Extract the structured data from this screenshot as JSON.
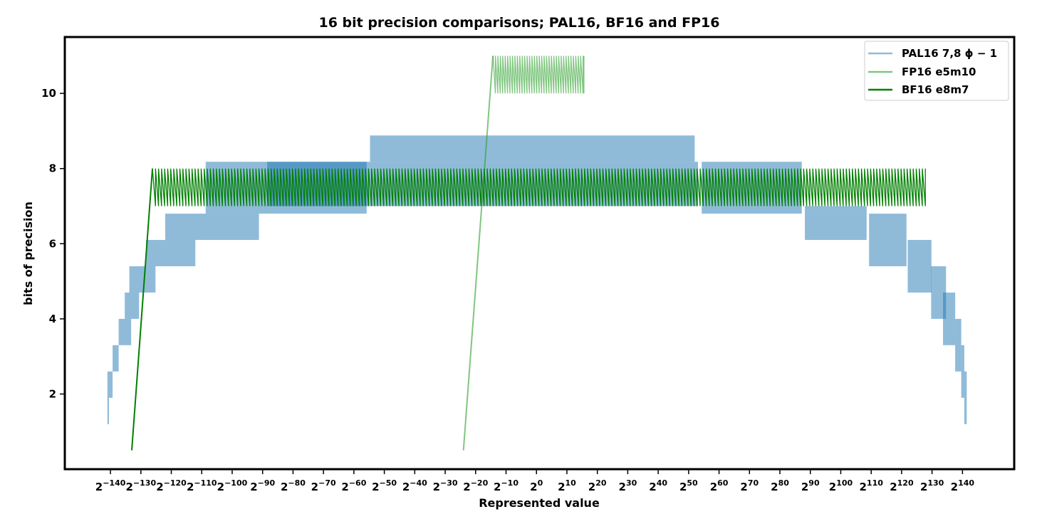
{
  "chart_data": {
    "type": "line",
    "title": "16 bit precision comparisons; PAL16, BF16 and FP16",
    "xlabel": "Represented value",
    "ylabel": "bits of precision",
    "x_scale": "log2",
    "x_tick_base": "2",
    "x_tick_exponents": [
      "−140",
      "−130",
      "−120",
      "−110",
      "−100",
      "−90",
      "−80",
      "−70",
      "−60",
      "−50",
      "−40",
      "−30",
      "−20",
      "−10",
      "0",
      "10",
      "20",
      "30",
      "40",
      "50",
      "60",
      "70",
      "80",
      "90",
      "100",
      "110",
      "120",
      "130",
      "140"
    ],
    "y_ticks": [
      "2",
      "4",
      "6",
      "8",
      "10"
    ],
    "y_tick_values": [
      2,
      4,
      6,
      8,
      10
    ],
    "xlim": [
      -155,
      157
    ],
    "ylim": [
      0,
      11.5
    ],
    "grid": false,
    "legend_position": "top-right",
    "series": [
      {
        "name": "PAL16 7,8 ϕ − 1",
        "style": "band",
        "color": "#1f77b4",
        "alpha": 0.5,
        "bands": [
          {
            "x": [
              -141,
              -140.5
            ],
            "low": 1.2,
            "high": 2.6
          },
          {
            "x": [
              -140.5,
              -139.3
            ],
            "low": 1.9,
            "high": 2.6
          },
          {
            "x": [
              -139.3,
              -137.3
            ],
            "low": 2.6,
            "high": 3.3
          },
          {
            "x": [
              -137.3,
              -133.2
            ],
            "low": 3.3,
            "high": 4.0
          },
          {
            "x": [
              -135.3,
              -130.6
            ],
            "low": 4.0,
            "high": 4.7
          },
          {
            "x": [
              -133.8,
              -125.2
            ],
            "low": 4.7,
            "high": 5.4
          },
          {
            "x": [
              -128.3,
              -112.1
            ],
            "low": 5.4,
            "high": 6.1
          },
          {
            "x": [
              -122.0,
              -91.2
            ],
            "low": 6.1,
            "high": 6.8
          },
          {
            "x": [
              -108.7,
              -55.8
            ],
            "low": 6.8,
            "high": 8.18
          },
          {
            "x": [
              -88.5,
              53.1
            ],
            "low": 7.0,
            "high": 8.18
          },
          {
            "x": [
              -54.7,
              52.0
            ],
            "low": 8.18,
            "high": 8.88
          },
          {
            "x": [
              54.3,
              87.2
            ],
            "low": 6.8,
            "high": 8.18
          },
          {
            "x": [
              88.2,
              108.5
            ],
            "low": 6.1,
            "high": 6.8
          },
          {
            "x": [
              88.2,
              108.5
            ],
            "low": 6.8,
            "high": 7.0
          },
          {
            "x": [
              109.3,
              121.6
            ],
            "low": 5.4,
            "high": 6.8
          },
          {
            "x": [
              122.0,
              129.8
            ],
            "low": 4.7,
            "high": 6.1
          },
          {
            "x": [
              129.7,
              134.6
            ],
            "low": 4.0,
            "high": 5.4
          },
          {
            "x": [
              133.6,
              137.6
            ],
            "low": 3.3,
            "high": 4.7
          },
          {
            "x": [
              137.6,
              139.6
            ],
            "low": 2.6,
            "high": 4.0
          },
          {
            "x": [
              139.6,
              140.6
            ],
            "low": 1.9,
            "high": 3.3
          },
          {
            "x": [
              140.6,
              141.4
            ],
            "low": 1.2,
            "high": 2.6
          }
        ]
      },
      {
        "name": "FP16 e5m10",
        "style": "sawtooth",
        "color": "#2ca02c",
        "alpha": 0.6,
        "ramp": {
          "x": [
            -24,
            -14.3
          ],
          "y": [
            0.5,
            11.0
          ]
        },
        "x_range": [
          -14.3,
          15.6
        ],
        "low": 10.0,
        "high": 11.0,
        "period": 0.8
      },
      {
        "name": "BF16 e8m7",
        "style": "sawtooth",
        "color": "#008000",
        "alpha": 1.0,
        "ramp": {
          "x": [
            -133,
            -126.2
          ],
          "y": [
            0.5,
            8.0
          ]
        },
        "x_range": [
          -126.2,
          127.8
        ],
        "low": 7.0,
        "high": 8.0,
        "period": 1.0
      }
    ]
  }
}
